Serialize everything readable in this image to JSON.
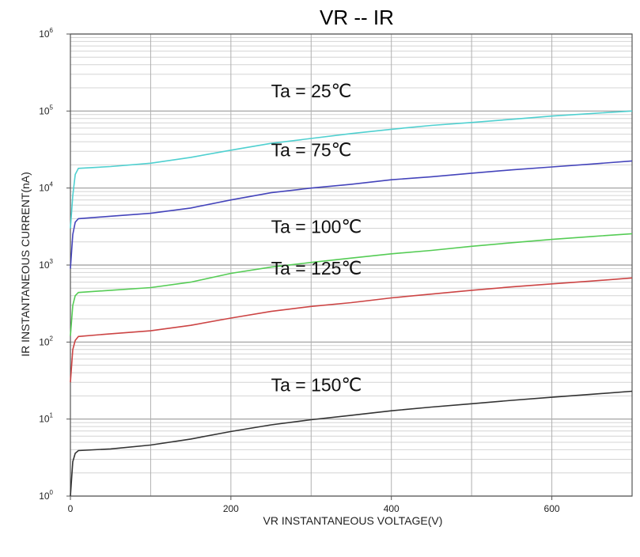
{
  "chart_data": {
    "type": "line",
    "title": "VR -- IR",
    "xlabel": "VR INSTANTANEOUS VOLTAGE(V)",
    "ylabel": "IR INSTANTANEOUS CURRENT(nA)",
    "x_scale": "linear",
    "y_scale": "log",
    "xlim": [
      0,
      700
    ],
    "ylim": [
      1,
      1000000
    ],
    "x_ticks": [
      0,
      200,
      400,
      600
    ],
    "x_tick_labels": [
      "0",
      "200",
      "400",
      "600"
    ],
    "y_ticks": [
      {
        "value": 1,
        "base": "10",
        "exp": "0"
      },
      {
        "value": 10,
        "base": "10",
        "exp": "1"
      },
      {
        "value": 100,
        "base": "10",
        "exp": "2"
      },
      {
        "value": 1000,
        "base": "10",
        "exp": "3"
      },
      {
        "value": 10000,
        "base": "10",
        "exp": "4"
      },
      {
        "value": 100000,
        "base": "10",
        "exp": "5"
      },
      {
        "value": 1000000,
        "base": "10",
        "exp": "6"
      }
    ],
    "grid": true,
    "series": [
      {
        "name": "Ta = 25℃",
        "color": "#4fd0d0",
        "label_at": [
          250,
          150000
        ],
        "points": [
          [
            0,
            3000
          ],
          [
            3,
            8000
          ],
          [
            6,
            15000
          ],
          [
            10,
            18000
          ],
          [
            50,
            19000
          ],
          [
            100,
            21000
          ],
          [
            150,
            25000
          ],
          [
            200,
            31000
          ],
          [
            250,
            38000
          ],
          [
            300,
            44000
          ],
          [
            350,
            51000
          ],
          [
            400,
            58000
          ],
          [
            450,
            65000
          ],
          [
            500,
            71000
          ],
          [
            550,
            78000
          ],
          [
            600,
            86000
          ],
          [
            650,
            93000
          ],
          [
            700,
            100000
          ]
        ]
      },
      {
        "name": "Ta = 75℃",
        "color": "#4444bb",
        "label_at": [
          250,
          26000
        ],
        "points": [
          [
            0,
            900
          ],
          [
            3,
            2500
          ],
          [
            6,
            3600
          ],
          [
            10,
            4000
          ],
          [
            50,
            4300
          ],
          [
            100,
            4700
          ],
          [
            150,
            5500
          ],
          [
            200,
            7000
          ],
          [
            250,
            8700
          ],
          [
            300,
            10000
          ],
          [
            350,
            11200
          ],
          [
            400,
            12800
          ],
          [
            450,
            14000
          ],
          [
            500,
            15600
          ],
          [
            550,
            17200
          ],
          [
            600,
            18800
          ],
          [
            650,
            20500
          ],
          [
            700,
            22500
          ]
        ]
      },
      {
        "name": "Ta = 100℃",
        "color": "#55cc55",
        "label_at": [
          250,
          2600
        ],
        "points": [
          [
            0,
            120
          ],
          [
            3,
            300
          ],
          [
            6,
            400
          ],
          [
            10,
            440
          ],
          [
            50,
            470
          ],
          [
            100,
            510
          ],
          [
            150,
            600
          ],
          [
            200,
            780
          ],
          [
            250,
            940
          ],
          [
            300,
            1080
          ],
          [
            350,
            1230
          ],
          [
            400,
            1400
          ],
          [
            450,
            1550
          ],
          [
            500,
            1750
          ],
          [
            550,
            1950
          ],
          [
            600,
            2150
          ],
          [
            650,
            2350
          ],
          [
            700,
            2550
          ]
        ]
      },
      {
        "name": "Ta = 125℃",
        "color": "#cc4444",
        "label_at": [
          250,
          750
        ],
        "points": [
          [
            0,
            30
          ],
          [
            3,
            80
          ],
          [
            6,
            105
          ],
          [
            10,
            118
          ],
          [
            50,
            128
          ],
          [
            100,
            140
          ],
          [
            150,
            165
          ],
          [
            200,
            205
          ],
          [
            250,
            250
          ],
          [
            300,
            290
          ],
          [
            350,
            325
          ],
          [
            400,
            375
          ],
          [
            450,
            420
          ],
          [
            500,
            470
          ],
          [
            550,
            520
          ],
          [
            600,
            570
          ],
          [
            650,
            620
          ],
          [
            700,
            680
          ]
        ]
      },
      {
        "name": "Ta = 150℃",
        "color": "#333333",
        "label_at": [
          250,
          23000000000
        ],
        "points": [
          [
            0,
            1
          ],
          [
            3,
            2.8
          ],
          [
            6,
            3.6
          ],
          [
            10,
            3.9
          ],
          [
            50,
            4.1
          ],
          [
            100,
            4.6
          ],
          [
            150,
            5.5
          ],
          [
            200,
            6.9
          ],
          [
            250,
            8.4
          ],
          [
            300,
            9.8
          ],
          [
            350,
            11.2
          ],
          [
            400,
            12.8
          ],
          [
            450,
            14.3
          ],
          [
            500,
            15.8
          ],
          [
            550,
            17.5
          ],
          [
            600,
            19.2
          ],
          [
            650,
            21
          ],
          [
            700,
            23
          ]
        ]
      }
    ]
  }
}
